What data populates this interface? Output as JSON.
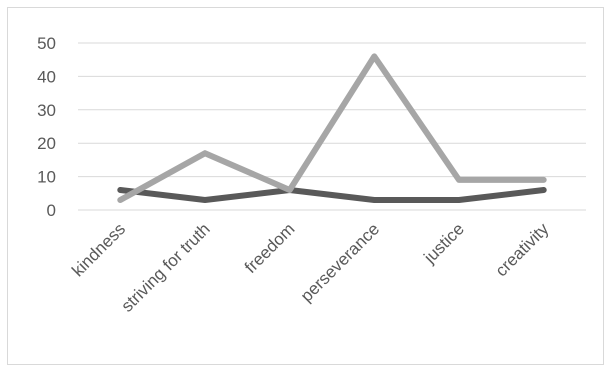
{
  "chart_data": {
    "type": "line",
    "categories": [
      "kindness",
      "striving for truth",
      "freedom",
      "perseverance",
      "justice",
      "creativity"
    ],
    "series": [
      {
        "values": [
          6,
          3,
          6,
          3,
          3,
          6
        ],
        "color": "#595959"
      },
      {
        "values": [
          3,
          17,
          6,
          46,
          9,
          9
        ],
        "color": "#a6a6a6"
      }
    ],
    "y_ticks": [
      0,
      10,
      20,
      30,
      40,
      50
    ],
    "ylim": [
      0,
      50
    ],
    "grid": true,
    "legend": "none",
    "gridline_color": "#d9d9d9",
    "label_color": "#595959"
  }
}
